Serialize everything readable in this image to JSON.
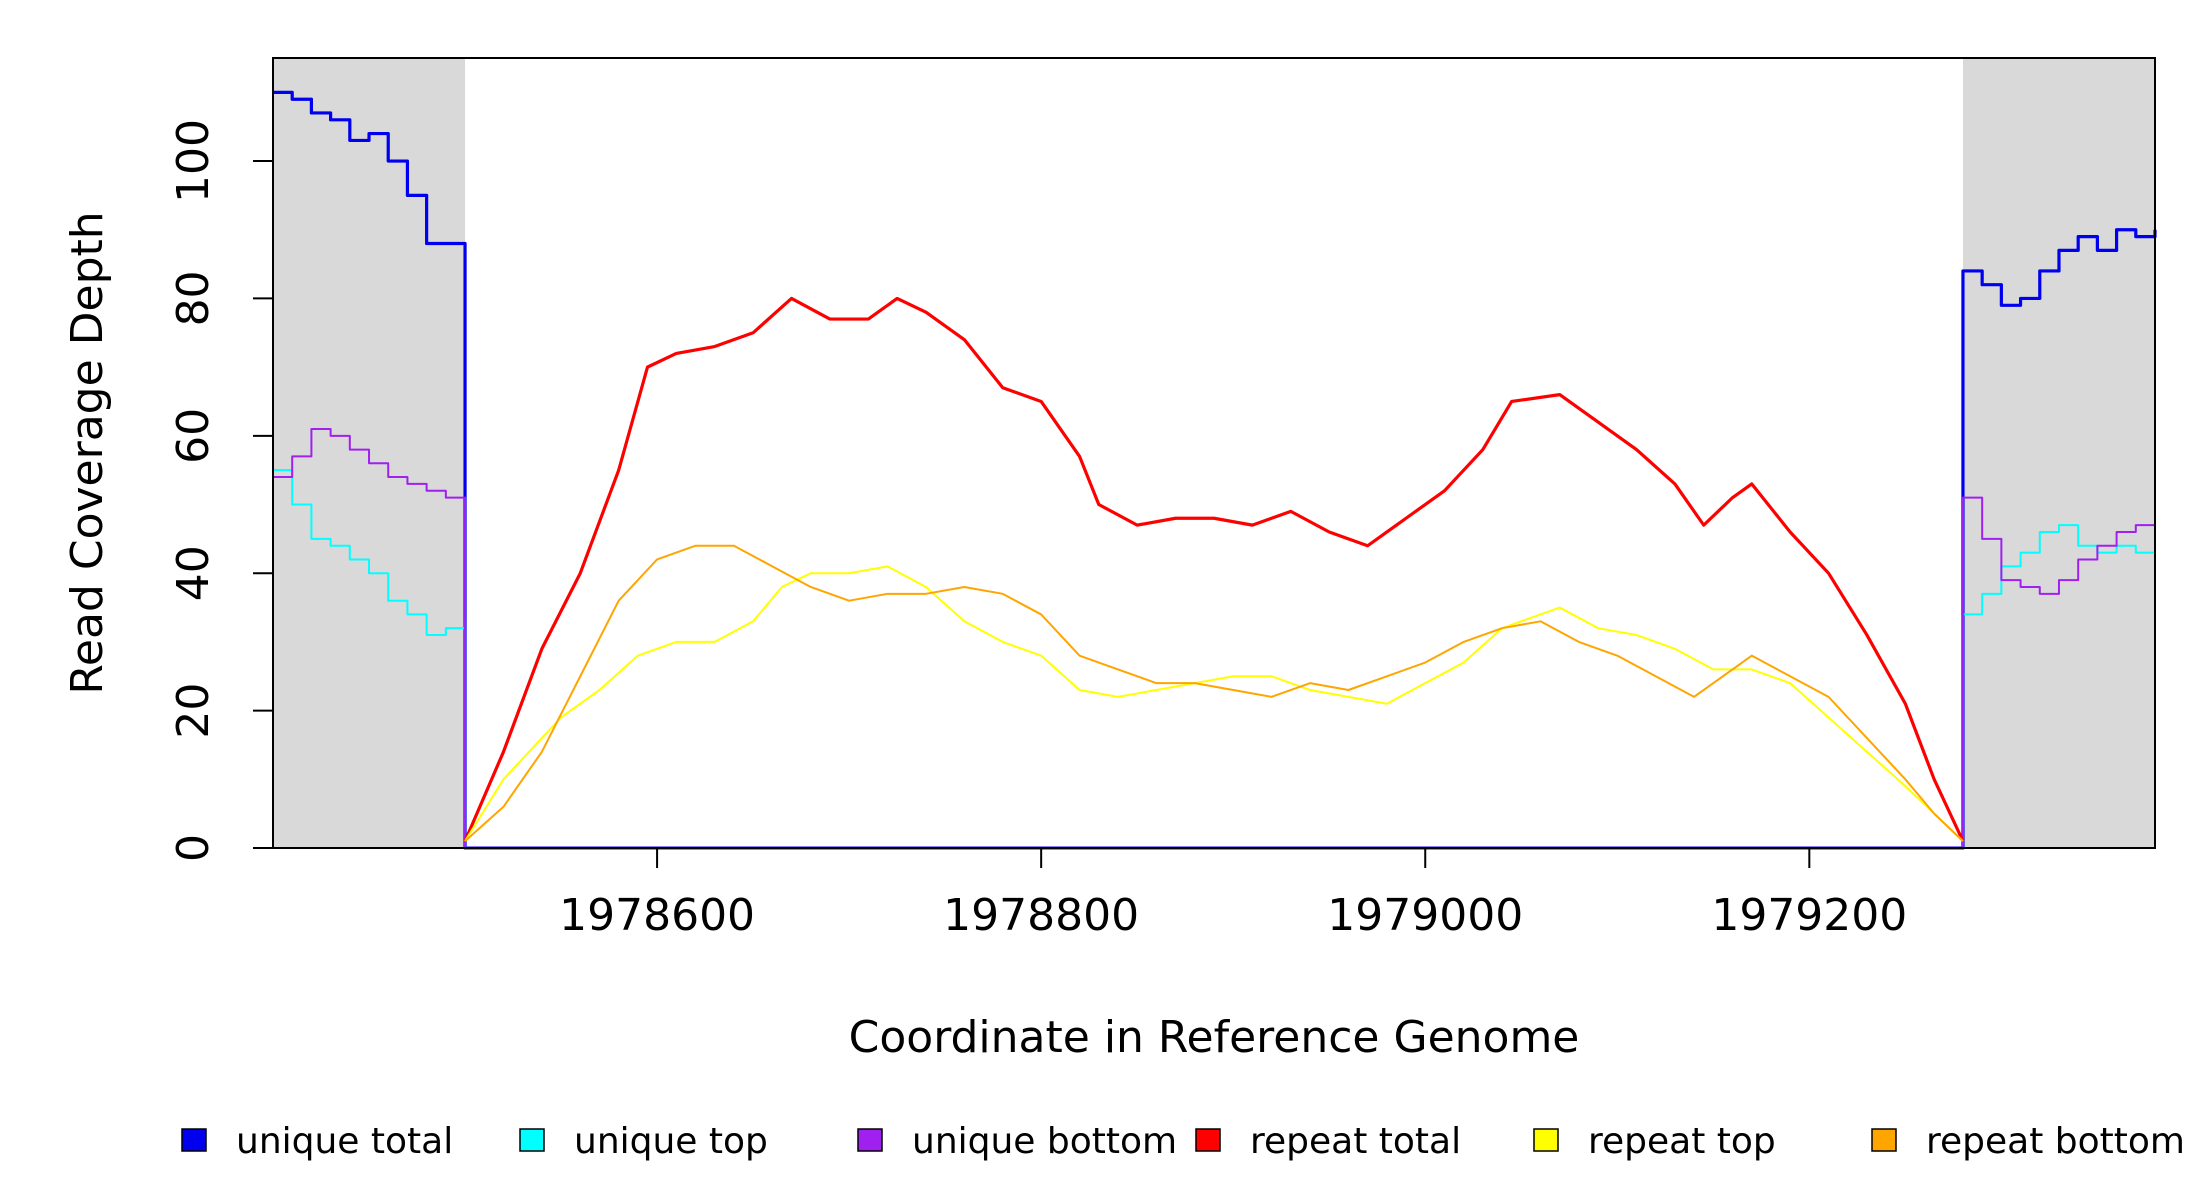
{
  "chart_data": {
    "type": "line",
    "title": "",
    "xlabel": "Coordinate in Reference Genome",
    "ylabel": "Read Coverage Depth",
    "xlim": [
      1978400,
      1979380
    ],
    "ylim": [
      0,
      115
    ],
    "x_ticks": [
      1978600,
      1978800,
      1979000,
      1979200
    ],
    "y_ticks": [
      0,
      20,
      40,
      60,
      80,
      100
    ],
    "shaded_regions": [
      {
        "x0": 1978400,
        "x1": 1978500,
        "color": "#d9d9d9"
      },
      {
        "x0": 1979280,
        "x1": 1979380,
        "color": "#d9d9d9"
      }
    ],
    "grid": false,
    "legend_position": "bottom",
    "series": [
      {
        "name": "unique total",
        "color": "#0000ee",
        "step": true,
        "points": [
          [
            1978400,
            110
          ],
          [
            1978410,
            109
          ],
          [
            1978420,
            107
          ],
          [
            1978430,
            106
          ],
          [
            1978440,
            103
          ],
          [
            1978450,
            104
          ],
          [
            1978460,
            100
          ],
          [
            1978470,
            95
          ],
          [
            1978480,
            88
          ],
          [
            1978490,
            88
          ],
          [
            1978500,
            84
          ],
          [
            1978500,
            0
          ],
          [
            1979280,
            0
          ],
          [
            1979280,
            84
          ],
          [
            1979290,
            82
          ],
          [
            1979300,
            79
          ],
          [
            1979310,
            80
          ],
          [
            1979320,
            84
          ],
          [
            1979330,
            87
          ],
          [
            1979340,
            89
          ],
          [
            1979350,
            87
          ],
          [
            1979360,
            90
          ],
          [
            1979370,
            89
          ],
          [
            1979380,
            90
          ]
        ]
      },
      {
        "name": "unique top",
        "color": "#00ffff",
        "step": true,
        "points": [
          [
            1978400,
            55
          ],
          [
            1978410,
            50
          ],
          [
            1978420,
            45
          ],
          [
            1978430,
            44
          ],
          [
            1978440,
            42
          ],
          [
            1978450,
            40
          ],
          [
            1978460,
            36
          ],
          [
            1978470,
            34
          ],
          [
            1978480,
            31
          ],
          [
            1978490,
            32
          ],
          [
            1978500,
            33
          ],
          [
            1978500,
            0
          ],
          [
            1979280,
            0
          ],
          [
            1979280,
            34
          ],
          [
            1979290,
            37
          ],
          [
            1979300,
            41
          ],
          [
            1979310,
            43
          ],
          [
            1979320,
            46
          ],
          [
            1979330,
            47
          ],
          [
            1979340,
            44
          ],
          [
            1979350,
            43
          ],
          [
            1979360,
            44
          ],
          [
            1979370,
            43
          ],
          [
            1979380,
            42
          ]
        ]
      },
      {
        "name": "unique bottom",
        "color": "#a020f0",
        "step": true,
        "points": [
          [
            1978400,
            54
          ],
          [
            1978410,
            57
          ],
          [
            1978420,
            61
          ],
          [
            1978430,
            60
          ],
          [
            1978440,
            58
          ],
          [
            1978450,
            56
          ],
          [
            1978460,
            54
          ],
          [
            1978470,
            53
          ],
          [
            1978480,
            52
          ],
          [
            1978490,
            51
          ],
          [
            1978500,
            51
          ],
          [
            1978500,
            0
          ],
          [
            1979280,
            0
          ],
          [
            1979280,
            51
          ],
          [
            1979290,
            45
          ],
          [
            1979300,
            39
          ],
          [
            1979310,
            38
          ],
          [
            1979320,
            37
          ],
          [
            1979330,
            39
          ],
          [
            1979340,
            42
          ],
          [
            1979350,
            44
          ],
          [
            1979360,
            46
          ],
          [
            1979370,
            47
          ],
          [
            1979380,
            49
          ]
        ]
      },
      {
        "name": "repeat total",
        "color": "#ff0000",
        "step": false,
        "points": [
          [
            1978500,
            1
          ],
          [
            1978520,
            14
          ],
          [
            1978540,
            29
          ],
          [
            1978560,
            40
          ],
          [
            1978580,
            55
          ],
          [
            1978595,
            70
          ],
          [
            1978610,
            72
          ],
          [
            1978630,
            73
          ],
          [
            1978650,
            75
          ],
          [
            1978670,
            80
          ],
          [
            1978690,
            77
          ],
          [
            1978710,
            77
          ],
          [
            1978725,
            80
          ],
          [
            1978740,
            78
          ],
          [
            1978760,
            74
          ],
          [
            1978780,
            67
          ],
          [
            1978800,
            65
          ],
          [
            1978820,
            57
          ],
          [
            1978830,
            50
          ],
          [
            1978850,
            47
          ],
          [
            1978870,
            48
          ],
          [
            1978890,
            48
          ],
          [
            1978910,
            47
          ],
          [
            1978930,
            49
          ],
          [
            1978950,
            46
          ],
          [
            1978970,
            44
          ],
          [
            1978990,
            48
          ],
          [
            1979010,
            52
          ],
          [
            1979030,
            58
          ],
          [
            1979045,
            65
          ],
          [
            1979070,
            66
          ],
          [
            1979090,
            62
          ],
          [
            1979110,
            58
          ],
          [
            1979130,
            53
          ],
          [
            1979145,
            47
          ],
          [
            1979160,
            51
          ],
          [
            1979170,
            53
          ],
          [
            1979190,
            46
          ],
          [
            1979210,
            40
          ],
          [
            1979230,
            31
          ],
          [
            1979250,
            21
          ],
          [
            1979265,
            10
          ],
          [
            1979280,
            1
          ]
        ]
      },
      {
        "name": "repeat top",
        "color": "#ffff00",
        "step": false,
        "points": [
          [
            1978500,
            1
          ],
          [
            1978520,
            10
          ],
          [
            1978550,
            19
          ],
          [
            1978570,
            23
          ],
          [
            1978590,
            28
          ],
          [
            1978610,
            30
          ],
          [
            1978630,
            30
          ],
          [
            1978650,
            33
          ],
          [
            1978665,
            38
          ],
          [
            1978680,
            40
          ],
          [
            1978700,
            40
          ],
          [
            1978720,
            41
          ],
          [
            1978740,
            38
          ],
          [
            1978760,
            33
          ],
          [
            1978780,
            30
          ],
          [
            1978800,
            28
          ],
          [
            1978820,
            23
          ],
          [
            1978840,
            22
          ],
          [
            1978860,
            23
          ],
          [
            1978880,
            24
          ],
          [
            1978900,
            25
          ],
          [
            1978920,
            25
          ],
          [
            1978940,
            23
          ],
          [
            1978960,
            22
          ],
          [
            1978980,
            21
          ],
          [
            1979000,
            24
          ],
          [
            1979020,
            27
          ],
          [
            1979040,
            32
          ],
          [
            1979060,
            34
          ],
          [
            1979070,
            35
          ],
          [
            1979090,
            32
          ],
          [
            1979110,
            31
          ],
          [
            1979130,
            29
          ],
          [
            1979150,
            26
          ],
          [
            1979170,
            26
          ],
          [
            1979190,
            24
          ],
          [
            1979210,
            19
          ],
          [
            1979230,
            14
          ],
          [
            1979250,
            9
          ],
          [
            1979265,
            5
          ],
          [
            1979280,
            1
          ]
        ]
      },
      {
        "name": "repeat bottom",
        "color": "#ffa500",
        "step": false,
        "points": [
          [
            1978500,
            1
          ],
          [
            1978520,
            6
          ],
          [
            1978540,
            14
          ],
          [
            1978560,
            25
          ],
          [
            1978580,
            36
          ],
          [
            1978600,
            42
          ],
          [
            1978620,
            44
          ],
          [
            1978640,
            44
          ],
          [
            1978660,
            41
          ],
          [
            1978680,
            38
          ],
          [
            1978700,
            36
          ],
          [
            1978720,
            37
          ],
          [
            1978740,
            37
          ],
          [
            1978760,
            38
          ],
          [
            1978780,
            37
          ],
          [
            1978800,
            34
          ],
          [
            1978820,
            28
          ],
          [
            1978840,
            26
          ],
          [
            1978860,
            24
          ],
          [
            1978880,
            24
          ],
          [
            1978900,
            23
          ],
          [
            1978920,
            22
          ],
          [
            1978940,
            24
          ],
          [
            1978960,
            23
          ],
          [
            1978980,
            25
          ],
          [
            1979000,
            27
          ],
          [
            1979020,
            30
          ],
          [
            1979040,
            32
          ],
          [
            1979060,
            33
          ],
          [
            1979080,
            30
          ],
          [
            1979100,
            28
          ],
          [
            1979120,
            25
          ],
          [
            1979140,
            22
          ],
          [
            1979160,
            26
          ],
          [
            1979170,
            28
          ],
          [
            1979190,
            25
          ],
          [
            1979210,
            22
          ],
          [
            1979230,
            16
          ],
          [
            1979250,
            10
          ],
          [
            1979265,
            5
          ],
          [
            1979280,
            1
          ]
        ]
      }
    ]
  }
}
